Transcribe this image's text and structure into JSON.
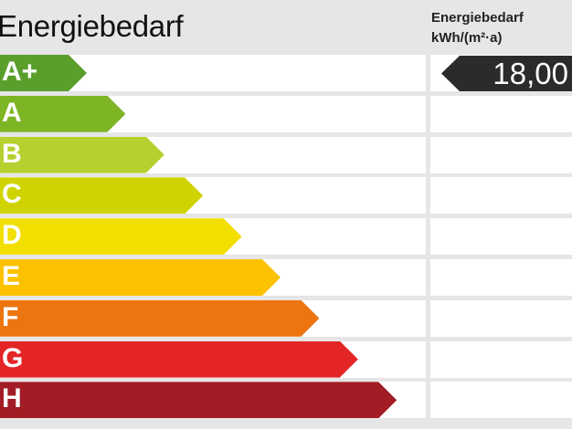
{
  "header": {
    "title": "Energiebedarf",
    "column_title": "Energiebedarf",
    "column_unit": "kWh/(m²·a)"
  },
  "chart_data": {
    "type": "bar",
    "title": "Energiebedarf",
    "categories": [
      "A+",
      "A",
      "B",
      "C",
      "D",
      "E",
      "F",
      "G",
      "H"
    ],
    "colors": [
      "#5a9e2b",
      "#7db524",
      "#b5d12f",
      "#cfd400",
      "#f2df00",
      "#fcc200",
      "#ec7510",
      "#e42526",
      "#a11c24"
    ],
    "indicator": {
      "class": "A+",
      "value": "18,00",
      "label": "Energiebedarf",
      "unit": "kWh/(m²·a)",
      "color": "#2b2b2b"
    }
  }
}
